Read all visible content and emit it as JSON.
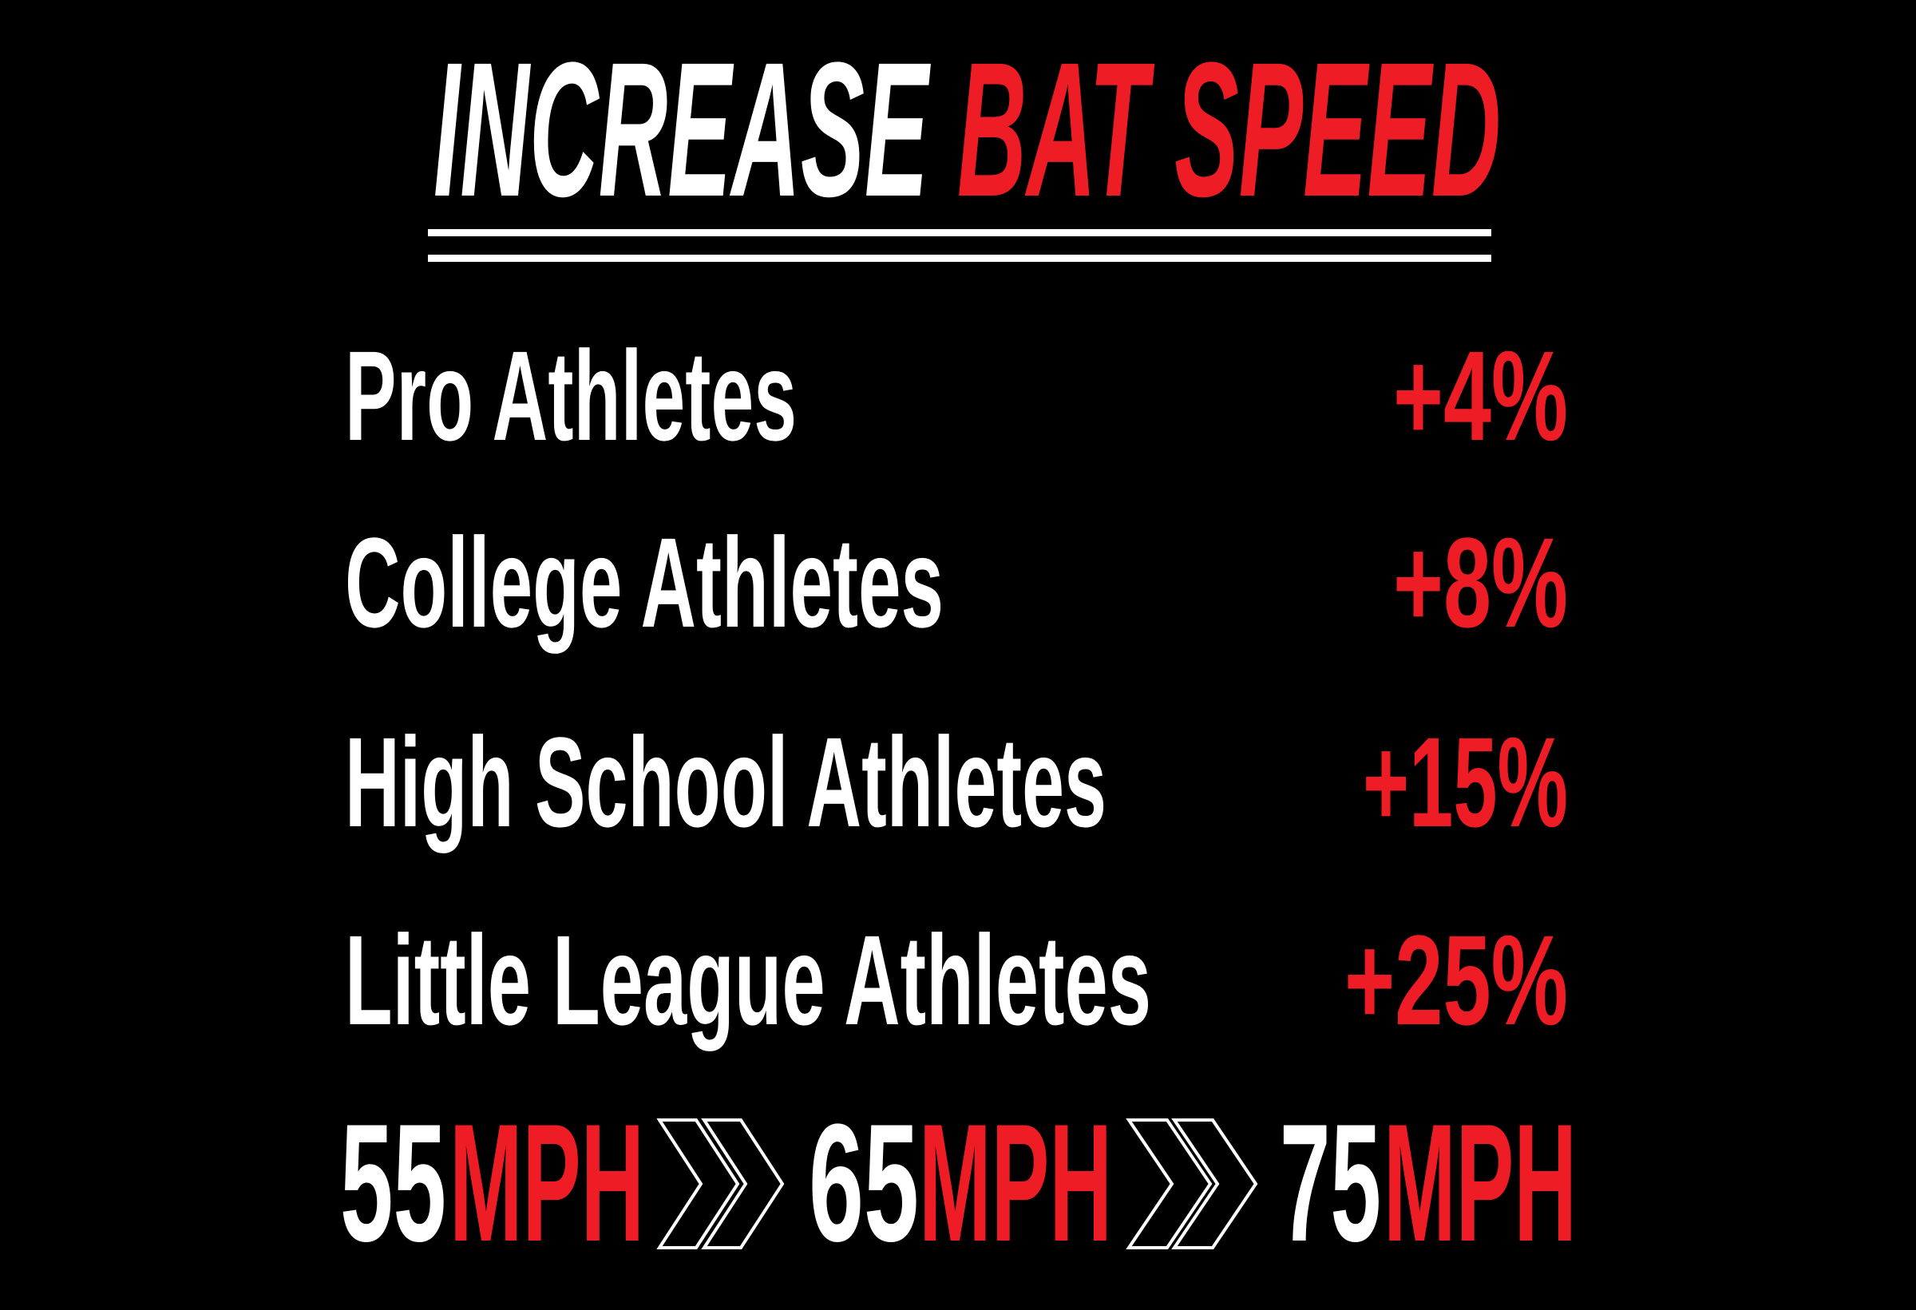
{
  "title": {
    "white": "INCREASE",
    "red": "BAT SPEED"
  },
  "rows": [
    {
      "label": "Pro Athletes",
      "value": "+4%"
    },
    {
      "label": "College Athletes",
      "value": "+8%"
    },
    {
      "label": "High School Athletes",
      "value": "+15%"
    },
    {
      "label": "Little League Athletes",
      "value": "+25%"
    }
  ],
  "speeds": [
    {
      "number": "55",
      "unit": "MPH"
    },
    {
      "number": "65",
      "unit": "MPH"
    },
    {
      "number": "75",
      "unit": "MPH"
    }
  ]
}
